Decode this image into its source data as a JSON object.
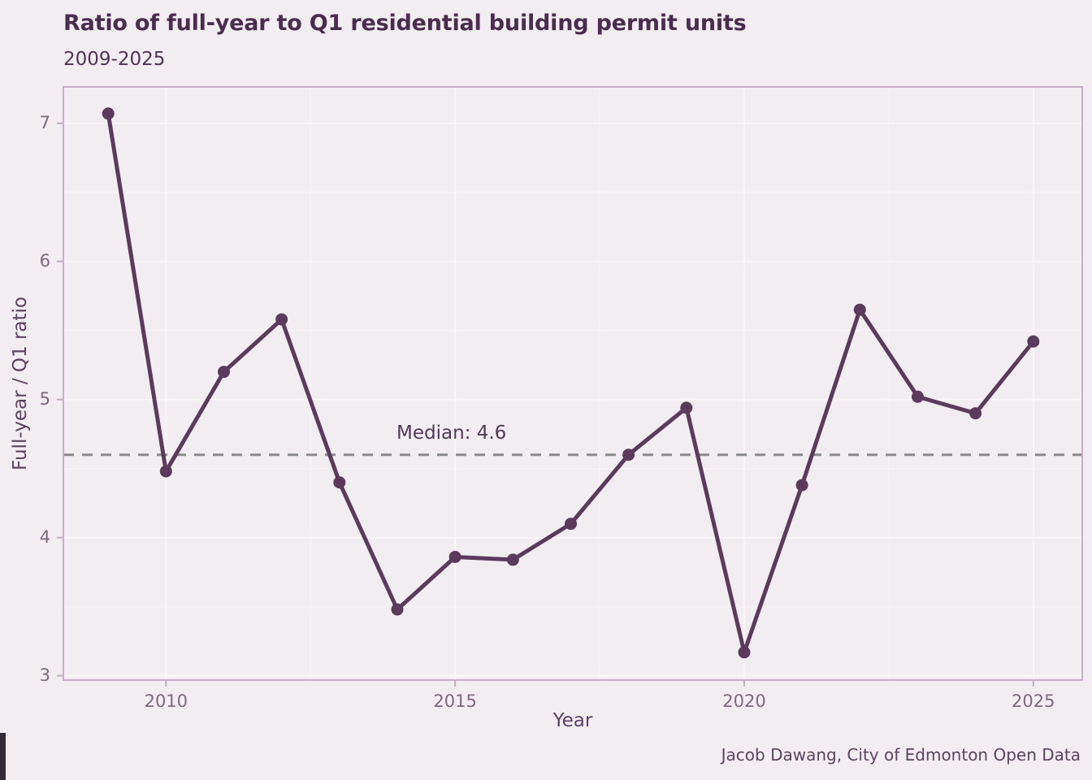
{
  "chart_data": {
    "type": "line",
    "title": "Ratio of full-year to Q1 residential building permit units",
    "subtitle": "2009-2025",
    "xlabel": "Year",
    "ylabel": "Full-year / Q1 ratio",
    "caption": "Jacob Dawang, City of Edmonton Open Data",
    "x": [
      2009,
      2010,
      2011,
      2012,
      2013,
      2014,
      2015,
      2016,
      2017,
      2018,
      2019,
      2020,
      2021,
      2022,
      2023,
      2024,
      2025
    ],
    "y": [
      7.07,
      4.48,
      5.2,
      5.58,
      4.4,
      3.48,
      3.86,
      3.84,
      4.1,
      4.6,
      4.94,
      3.17,
      4.38,
      5.65,
      5.02,
      4.9,
      5.42
    ],
    "median": 4.6,
    "median_label": "Median: 4.6",
    "x_ticks": [
      2010,
      2015,
      2020,
      2025
    ],
    "y_ticks": [
      3,
      4,
      5,
      6,
      7
    ],
    "x_minor_ticks": [
      2012.5,
      2017.5,
      2022.5
    ],
    "y_minor_ticks": [
      3.5,
      4.5,
      5.5,
      6.5
    ],
    "xlim": [
      2008.225,
      2025.846
    ],
    "ylim": [
      2.969,
      7.263
    ],
    "grid": true,
    "legend": false,
    "colors": {
      "background": "#f2edf1",
      "series_line": "#5c3a5e",
      "data_point": "#5c3a5e",
      "median_line": "#8b8b8b",
      "panel_border": "#c8afc7",
      "grid_major": "#faf6f8",
      "grid_minor": "#f7f2f5",
      "tick_mark": "#bfacbf",
      "title_text": "#4b2c50",
      "tick_text": "#7d6a7f"
    }
  }
}
